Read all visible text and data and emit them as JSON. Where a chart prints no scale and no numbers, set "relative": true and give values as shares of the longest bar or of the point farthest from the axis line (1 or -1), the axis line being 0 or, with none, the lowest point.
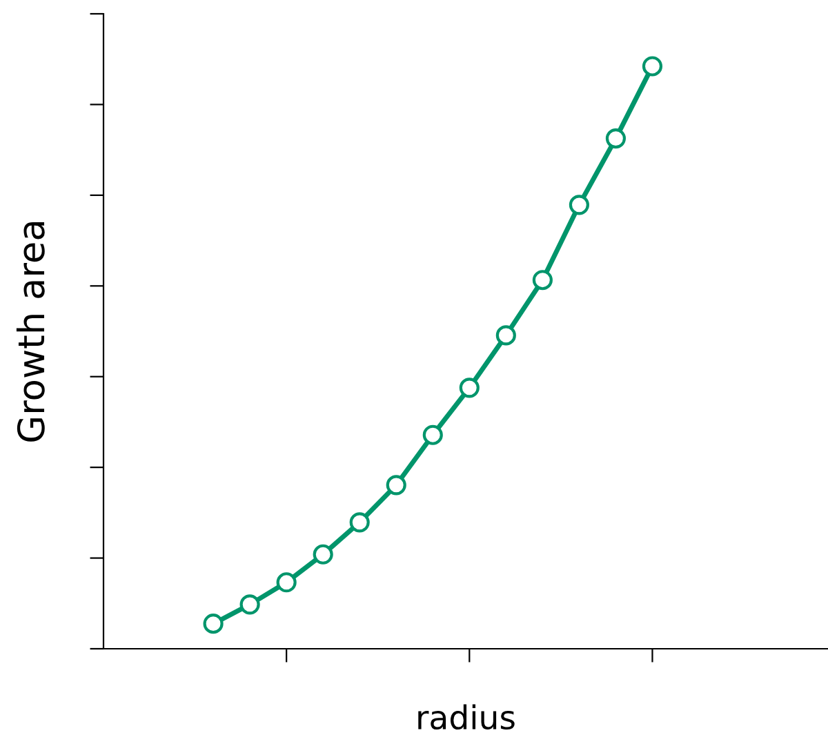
{
  "chart_data": {
    "type": "line",
    "xlabel": "radius",
    "ylabel": "Growth area",
    "relative": true,
    "categories": [
      null,
      null,
      null,
      null,
      null,
      null,
      null,
      null,
      null,
      null,
      null,
      null,
      null
    ],
    "series": [
      {
        "color": "#00956b",
        "values": [
          0.043,
          0.076,
          0.114,
          0.162,
          0.217,
          0.281,
          0.367,
          0.448,
          0.538,
          0.633,
          0.762,
          0.876,
          1
        ]
      }
    ],
    "marker": "circle",
    "line_style": "solid",
    "grid": false,
    "legend": false,
    "tick_labels": false
  }
}
